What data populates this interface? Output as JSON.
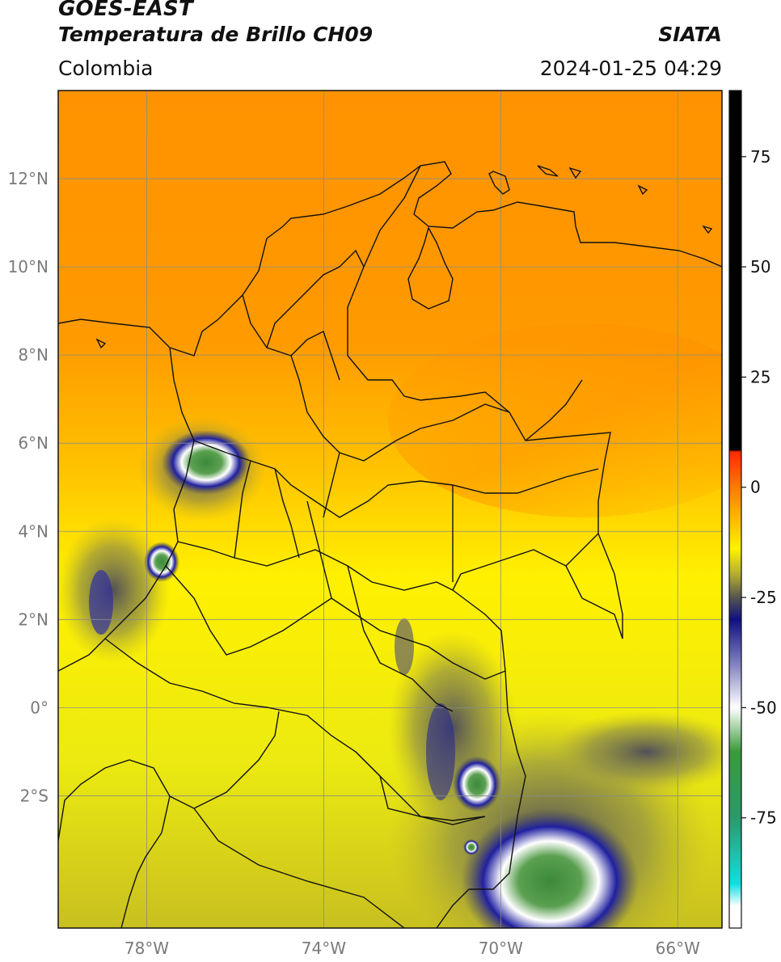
{
  "header": {
    "satellite": "GOES-EAST",
    "product": "Temperatura de Brillo CH09",
    "region": "Colombia",
    "agency": "SIATA",
    "datetime": "2024-01-25 04:29"
  },
  "map": {
    "lon_range": [
      -80,
      -65
    ],
    "lat_range": [
      -5,
      14
    ],
    "lon_ticks": [
      {
        "value": -78,
        "label": "78°W"
      },
      {
        "value": -74,
        "label": "74°W"
      },
      {
        "value": -70,
        "label": "70°W"
      },
      {
        "value": -66,
        "label": "66°W"
      }
    ],
    "lat_ticks": [
      {
        "value": 12,
        "label": "12°N"
      },
      {
        "value": 10,
        "label": "10°N"
      },
      {
        "value": 8,
        "label": "8°N"
      },
      {
        "value": 6,
        "label": "6°N"
      },
      {
        "value": 4,
        "label": "4°N"
      },
      {
        "value": 2,
        "label": "2°N"
      },
      {
        "value": 0,
        "label": "0°"
      },
      {
        "value": -2,
        "label": "2°S"
      }
    ]
  },
  "colorbar": {
    "range": [
      -100,
      90
    ],
    "ticks": [
      {
        "value": 75,
        "label": "75"
      },
      {
        "value": 50,
        "label": "50"
      },
      {
        "value": 25,
        "label": "25"
      },
      {
        "value": 0,
        "label": "0"
      },
      {
        "value": -25,
        "label": "-25"
      },
      {
        "value": -50,
        "label": "-50"
      },
      {
        "value": -75,
        "label": "-75"
      }
    ],
    "stops": [
      {
        "value": 90,
        "color": "#000000"
      },
      {
        "value": 8.5,
        "color": "#000000"
      },
      {
        "value": 8,
        "color": "#ff2a00"
      },
      {
        "value": 0,
        "color": "#ff7a00"
      },
      {
        "value": -8,
        "color": "#ffc000"
      },
      {
        "value": -14,
        "color": "#fff200"
      },
      {
        "value": -20,
        "color": "#b0aa30"
      },
      {
        "value": -25,
        "color": "#555550"
      },
      {
        "value": -30,
        "color": "#101080"
      },
      {
        "value": -40,
        "color": "#8080c0"
      },
      {
        "value": -50,
        "color": "#ffffff"
      },
      {
        "value": -60,
        "color": "#3a9a3a"
      },
      {
        "value": -75,
        "color": "#2a9a6a"
      },
      {
        "value": -90,
        "color": "#10e0e0"
      },
      {
        "value": -95,
        "color": "#ffffff"
      },
      {
        "value": -100,
        "color": "#ffffff"
      }
    ]
  }
}
